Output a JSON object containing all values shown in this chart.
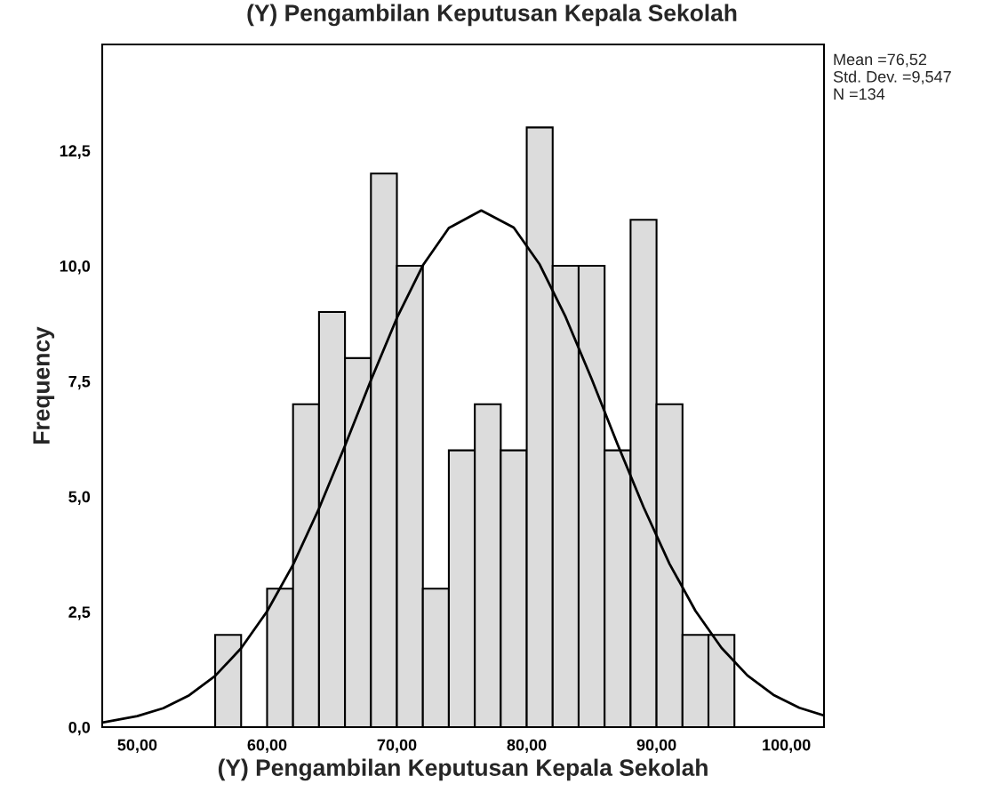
{
  "chart_data": {
    "type": "histogram",
    "title": "(Y) Pengambilan Keputusan Kepala Sekolah",
    "xlabel": "(Y) Pengambilan Keputusan Kepala Sekolah",
    "ylabel": "Frequency",
    "bins": [
      56,
      58,
      60,
      62,
      64,
      66,
      68,
      70,
      72,
      74,
      76,
      78,
      80,
      82,
      84,
      86,
      88,
      90,
      92,
      94,
      96
    ],
    "values": [
      2,
      0,
      3,
      7,
      9,
      8,
      12,
      10,
      3,
      6,
      7,
      6,
      13,
      10,
      10,
      6,
      11,
      7,
      2,
      2
    ],
    "color": "#dcdcdc",
    "series": [
      {
        "type": "line",
        "color": "#000000",
        "x": [
          47.3,
          50,
          52,
          54,
          56,
          58,
          60,
          62,
          64,
          66,
          68,
          70,
          72,
          74,
          76.5,
          79,
          81,
          83,
          85,
          87,
          89,
          91,
          93,
          95,
          97,
          99,
          101,
          102.9
        ],
        "values": [
          0.1,
          0.24,
          0.41,
          0.69,
          1.11,
          1.71,
          2.51,
          3.52,
          4.74,
          6.1,
          7.52,
          8.87,
          10.01,
          10.82,
          11.2,
          10.83,
          10.03,
          8.89,
          7.55,
          6.13,
          4.77,
          3.54,
          2.52,
          1.72,
          1.12,
          0.7,
          0.42,
          0.25
        ]
      }
    ],
    "xlim": [
      47.3,
      102.9
    ],
    "ylim": [
      0,
      14.8
    ],
    "xticks": [
      {
        "value": 50,
        "label": "50,00"
      },
      {
        "value": 60,
        "label": "60,00"
      },
      {
        "value": 70,
        "label": "70,00"
      },
      {
        "value": 80,
        "label": "80,00"
      },
      {
        "value": 90,
        "label": "90,00"
      },
      {
        "value": 100,
        "label": "100,00"
      }
    ],
    "yticks": [
      {
        "value": 0,
        "label": "0,0"
      },
      {
        "value": 2.5,
        "label": "2,5"
      },
      {
        "value": 5,
        "label": "5,0"
      },
      {
        "value": 7.5,
        "label": "7,5"
      },
      {
        "value": 10,
        "label": "10,0"
      },
      {
        "value": 12.5,
        "label": "12,5"
      }
    ],
    "annotations": [
      "Mean =76,52\nStd. Dev. =9,547\nN =134"
    ],
    "grid": false,
    "legend": false
  }
}
